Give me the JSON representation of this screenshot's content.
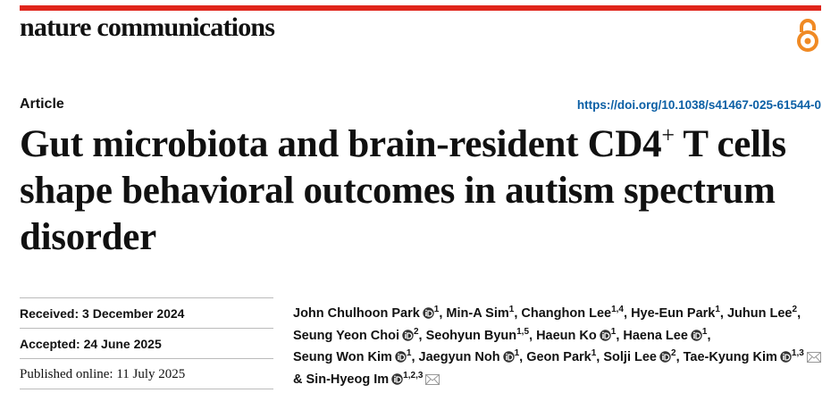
{
  "header": {
    "journal": "nature communications"
  },
  "article_type": "Article",
  "doi": "https://doi.org/10.1038/s41467-025-61544-0",
  "title": {
    "before": "Gut microbiota and brain-resident CD4",
    "superscript": "+",
    "after": " T cells shape behavioral outcomes in autism spectrum disorder"
  },
  "dates": [
    {
      "label": "Received:",
      "value": "3 December 2024"
    },
    {
      "label": "Accepted:",
      "value": "24 June 2025"
    },
    {
      "label": "Published online:",
      "value": "11 July 2025"
    }
  ],
  "authors": {
    "separator": ",",
    "last_separator": "&",
    "list": [
      {
        "name": "John Chulhoon Park",
        "orcid": true,
        "affiliations": "1",
        "corresponding": false
      },
      {
        "name": "Min-A Sim",
        "orcid": false,
        "affiliations": "1",
        "corresponding": false
      },
      {
        "name": "Changhon Lee",
        "orcid": false,
        "affiliations": "1,4",
        "corresponding": false
      },
      {
        "name": "Hye-Eun Park",
        "orcid": false,
        "affiliations": "1",
        "corresponding": false
      },
      {
        "name": "Juhun Lee",
        "orcid": false,
        "affiliations": "2",
        "corresponding": false
      },
      {
        "name": "Seung Yeon Choi",
        "orcid": true,
        "affiliations": "2",
        "corresponding": false
      },
      {
        "name": "Seohyun Byun",
        "orcid": false,
        "affiliations": "1,5",
        "corresponding": false
      },
      {
        "name": "Haeun Ko",
        "orcid": true,
        "affiliations": "1",
        "corresponding": false
      },
      {
        "name": "Haena Lee",
        "orcid": true,
        "affiliations": "1",
        "corresponding": false
      },
      {
        "name": "Seung Won Kim",
        "orcid": true,
        "affiliations": "1",
        "corresponding": false
      },
      {
        "name": "Jaegyun Noh",
        "orcid": true,
        "affiliations": "1",
        "corresponding": false
      },
      {
        "name": "Geon Park",
        "orcid": false,
        "affiliations": "1",
        "corresponding": false
      },
      {
        "name": "Solji Lee",
        "orcid": true,
        "affiliations": "2",
        "corresponding": false
      },
      {
        "name": "Tae-Kyung Kim",
        "orcid": true,
        "affiliations": "1,3",
        "corresponding": true
      },
      {
        "name": "Sin-Hyeog Im",
        "orcid": true,
        "affiliations": "1,2,3",
        "corresponding": true
      }
    ]
  }
}
